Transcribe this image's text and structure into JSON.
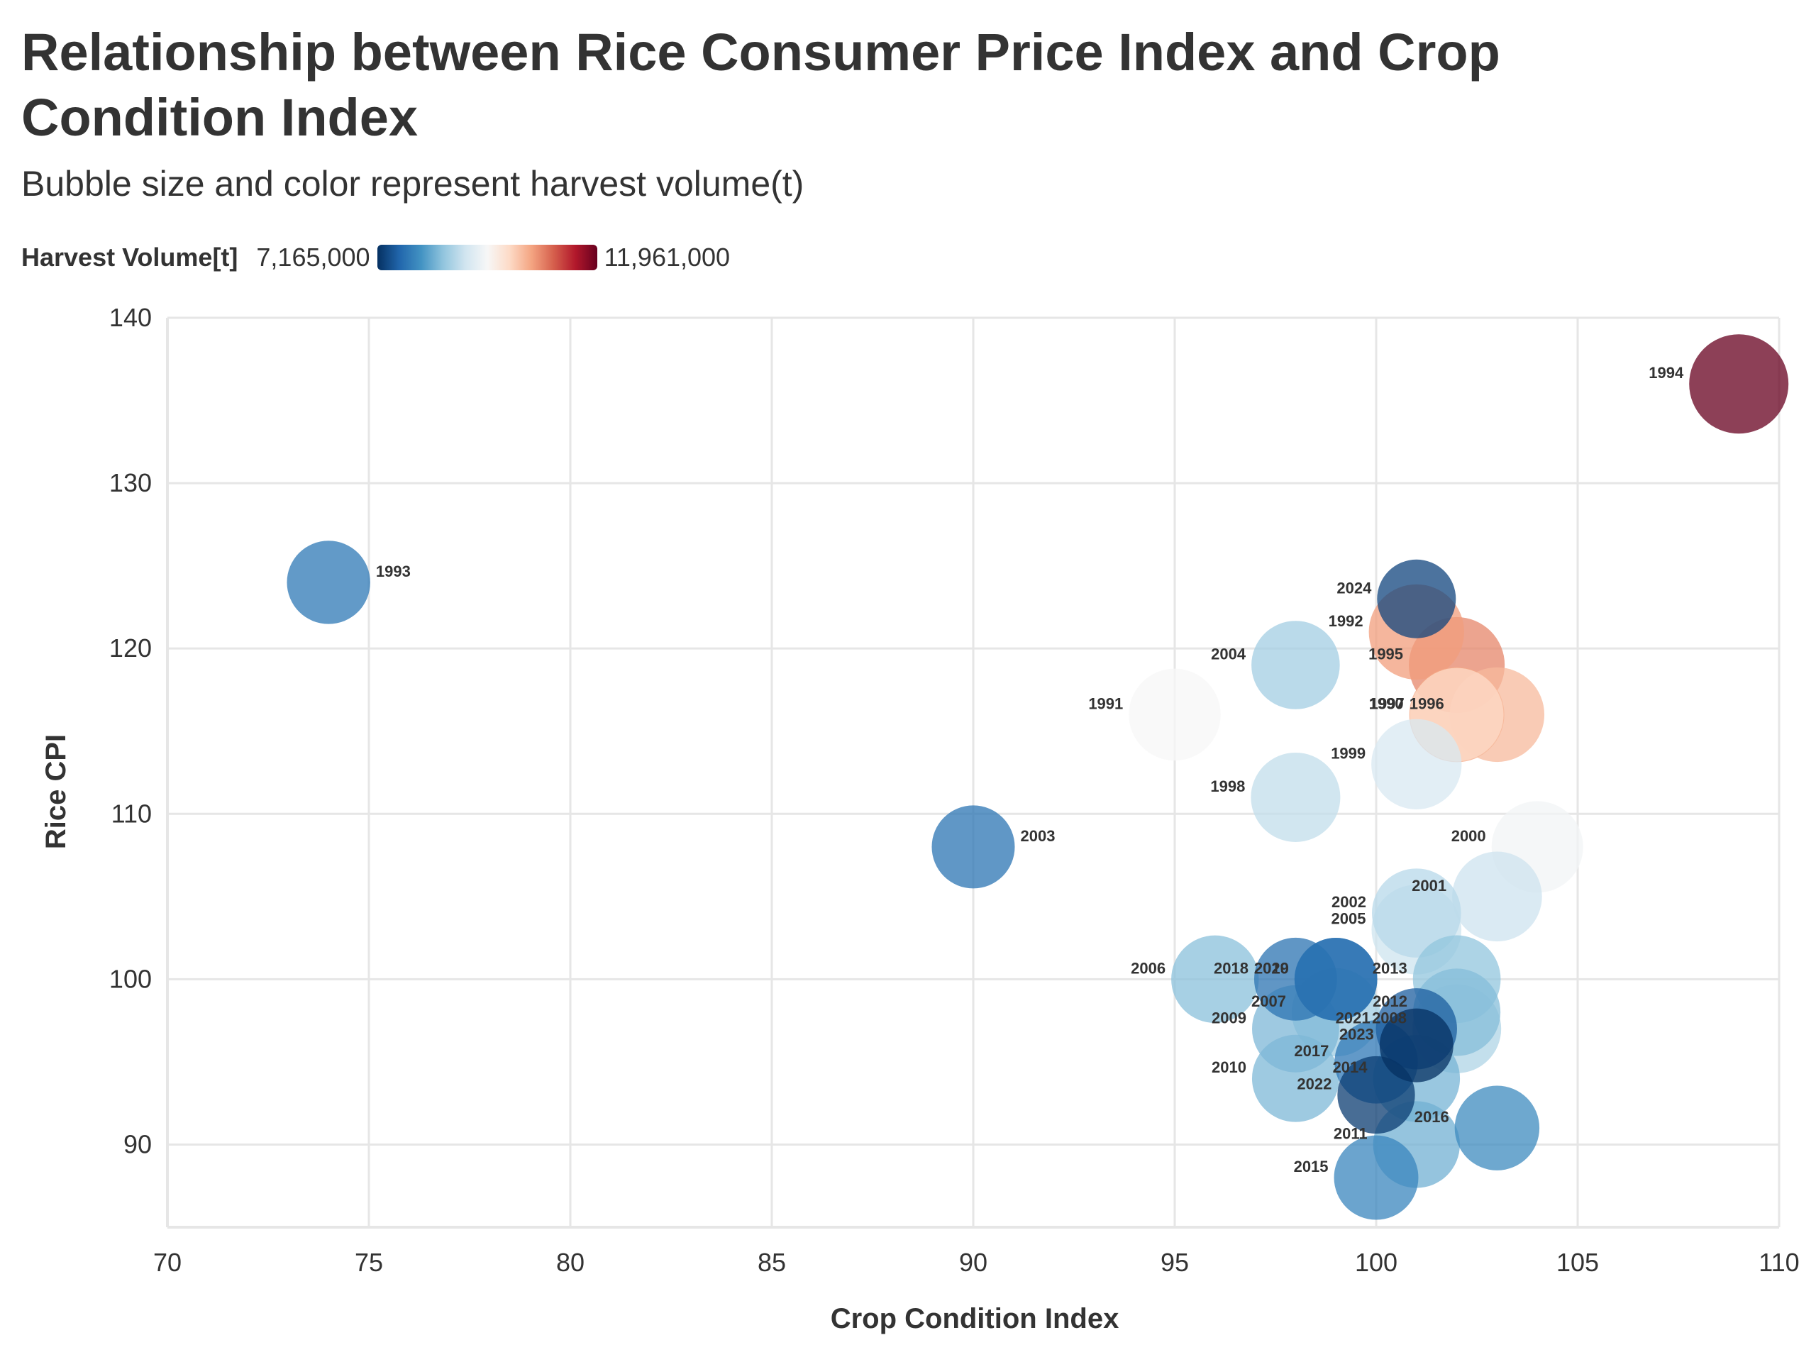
{
  "chart_data": {
    "type": "scatter",
    "title": "Relationship between Rice Consumer Price Index and Crop Condition Index",
    "subtitle": "Bubble size and color represent harvest volume(t)",
    "xlabel": "Crop Condition Index",
    "ylabel": "Rice CPI",
    "xlim": [
      70,
      110
    ],
    "ylim": [
      85,
      140
    ],
    "xticks": [
      70,
      75,
      80,
      85,
      90,
      95,
      100,
      105,
      110
    ],
    "yticks": [
      90,
      100,
      110,
      120,
      130,
      140
    ],
    "grid": true,
    "legend": {
      "title": "Harvest Volume[t]",
      "min_label": "7,165,000",
      "max_label": "11,961,000",
      "min": 7165000,
      "max": 11961000,
      "placement": "top-left"
    },
    "points": [
      {
        "label": "1990",
        "x": 102,
        "y": 116,
        "volume": 10499000
      },
      {
        "label": "1991",
        "x": 95,
        "y": 116,
        "volume": 9565000
      },
      {
        "label": "1992",
        "x": 101,
        "y": 121,
        "volume": 10573000
      },
      {
        "label": "1993",
        "x": 74,
        "y": 124,
        "volume": 7834000
      },
      {
        "label": "1994",
        "x": 109,
        "y": 136,
        "volume": 11961000
      },
      {
        "label": "1995",
        "x": 102,
        "y": 119,
        "volume": 10748000
      },
      {
        "label": "1996",
        "x": 103,
        "y": 116,
        "volume": 10344000
      },
      {
        "label": "1997",
        "x": 102,
        "y": 116,
        "volume": 10025000
      },
      {
        "label": "1998",
        "x": 98,
        "y": 111,
        "volume": 8960000
      },
      {
        "label": "1999",
        "x": 101,
        "y": 113,
        "volume": 9175000
      },
      {
        "label": "2000",
        "x": 104,
        "y": 108,
        "volume": 9490000
      },
      {
        "label": "2001",
        "x": 103,
        "y": 105,
        "volume": 9057000
      },
      {
        "label": "2002",
        "x": 101,
        "y": 104,
        "volume": 8889000
      },
      {
        "label": "2003",
        "x": 90,
        "y": 108,
        "volume": 7792000
      },
      {
        "label": "2004",
        "x": 98,
        "y": 119,
        "volume": 8730000
      },
      {
        "label": "2005",
        "x": 101,
        "y": 103,
        "volume": 9062000
      },
      {
        "label": "2006",
        "x": 96,
        "y": 100,
        "volume": 8556000
      },
      {
        "label": "2007",
        "x": 99,
        "y": 98,
        "volume": 8714000
      },
      {
        "label": "2008",
        "x": 102,
        "y": 97,
        "volume": 8823000
      },
      {
        "label": "2009",
        "x": 98,
        "y": 97,
        "volume": 8474000
      },
      {
        "label": "2010",
        "x": 98,
        "y": 94,
        "volume": 8483000
      },
      {
        "label": "2011",
        "x": 101,
        "y": 90,
        "volume": 8402000
      },
      {
        "label": "2012",
        "x": 102,
        "y": 98,
        "volume": 8523000
      },
      {
        "label": "2013",
        "x": 102,
        "y": 100,
        "volume": 8603000
      },
      {
        "label": "2014",
        "x": 101,
        "y": 94,
        "volume": 8439000
      },
      {
        "label": "2015",
        "x": 100,
        "y": 88,
        "volume": 7989000
      },
      {
        "label": "2016",
        "x": 103,
        "y": 91,
        "volume": 8042000
      },
      {
        "label": "2017",
        "x": 100,
        "y": 95,
        "volume": 7824000
      },
      {
        "label": "2018",
        "x": 98,
        "y": 100,
        "volume": 7780000
      },
      {
        "label": "2019",
        "x": 99,
        "y": 100,
        "volume": 7762000
      },
      {
        "label": "2020",
        "x": 99,
        "y": 100,
        "volume": 7763000
      },
      {
        "label": "2021",
        "x": 101,
        "y": 97,
        "volume": 7563000
      },
      {
        "label": "2022",
        "x": 100,
        "y": 93,
        "volume": 7269000
      },
      {
        "label": "2023",
        "x": 101,
        "y": 96,
        "volume": 7165000
      },
      {
        "label": "2024",
        "x": 101,
        "y": 123,
        "volume": 7345000
      }
    ]
  }
}
